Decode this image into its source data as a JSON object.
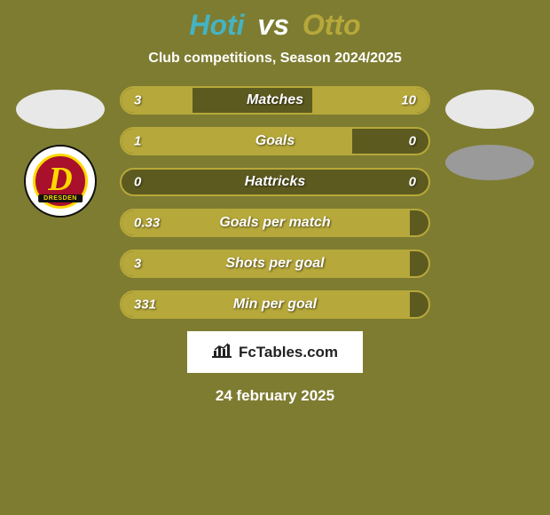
{
  "background_color": "#7e7c31",
  "title": {
    "player1": "Hoti",
    "vs": "vs",
    "player2": "Otto",
    "p1_color": "#44b4c4",
    "vs_color": "#ffffff",
    "p2_color": "#b6a83a"
  },
  "subtitle": {
    "text": "Club competitions, Season 2024/2025",
    "color": "#ffffff"
  },
  "player_left": {
    "avatar_color": "#e8e8e8",
    "club_name": "DRESDEN"
  },
  "player_right": {
    "avatar_color": "#e8e8e8",
    "club_shape_color": "#9a9a9a"
  },
  "bars": {
    "track_color": "#5d5a20",
    "border_color": "#b6a83a",
    "p1_fill_color": "#b6a83a",
    "p2_fill_color": "#b6a83a",
    "label_color": "#ffffff",
    "value_color": "#ffffff",
    "rows": [
      {
        "label": "Matches",
        "left_val": "3",
        "right_val": "10",
        "left_pct": 23,
        "right_pct": 38
      },
      {
        "label": "Goals",
        "left_val": "1",
        "right_val": "0",
        "left_pct": 75,
        "right_pct": 0
      },
      {
        "label": "Hattricks",
        "left_val": "0",
        "right_val": "0",
        "left_pct": 0,
        "right_pct": 0
      },
      {
        "label": "Goals per match",
        "left_val": "0.33",
        "right_val": "",
        "left_pct": 94,
        "right_pct": 0
      },
      {
        "label": "Shots per goal",
        "left_val": "3",
        "right_val": "",
        "left_pct": 94,
        "right_pct": 0
      },
      {
        "label": "Min per goal",
        "left_val": "331",
        "right_val": "",
        "left_pct": 94,
        "right_pct": 0
      }
    ]
  },
  "watermark": {
    "text": "FcTables.com"
  },
  "date": {
    "text": "24 february 2025",
    "color": "#ffffff"
  }
}
